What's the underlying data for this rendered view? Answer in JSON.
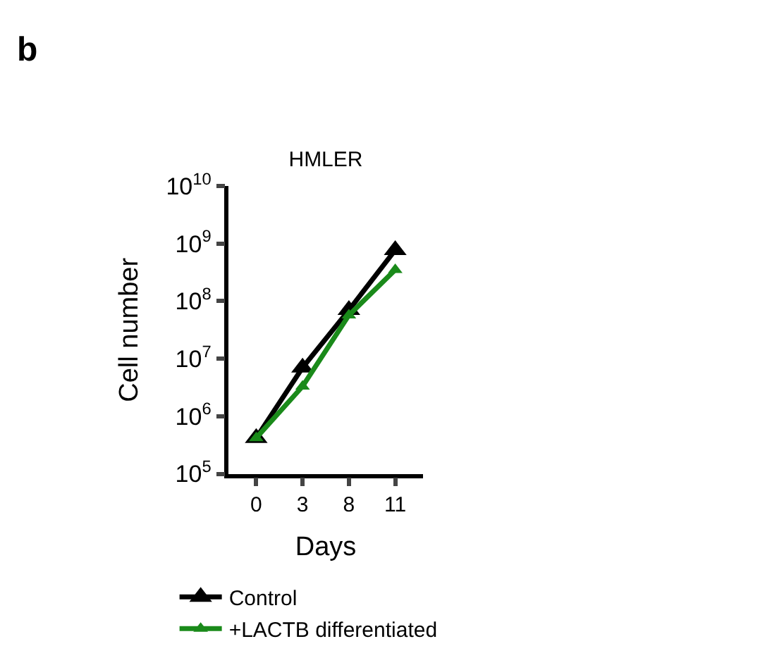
{
  "chart_data": {
    "type": "line",
    "title": "HMLER",
    "xlabel": "Days",
    "ylabel": "Cell number",
    "annotations": [
      "b"
    ],
    "categories": [
      "0",
      "3",
      "8",
      "11"
    ],
    "series": [
      {
        "name": "Control",
        "color": "#000000",
        "values": [
          420000,
          7000000,
          70000000,
          770000000
        ]
      },
      {
        "name": "+LACTB differentiated",
        "color": "#1a8a1a",
        "values": [
          420000,
          3300000,
          57000000,
          350000000
        ]
      }
    ],
    "log": "y",
    "ylim": [
      100000,
      10000000000
    ],
    "yticks": [
      {
        "value": 100000,
        "label": "10$^{5}$"
      },
      {
        "value": 1000000,
        "label": "10$^{6}$"
      },
      {
        "value": 10000000,
        "label": "10$^{7}$"
      },
      {
        "value": 100000000,
        "label": "10$^{8}$"
      },
      {
        "value": 1000000000,
        "label": "10$^{9}$"
      },
      {
        "value": 10000000000,
        "label": "10$^{10}$"
      }
    ],
    "legend": "bottom",
    "marker": "triangle",
    "line_style": "solid"
  }
}
